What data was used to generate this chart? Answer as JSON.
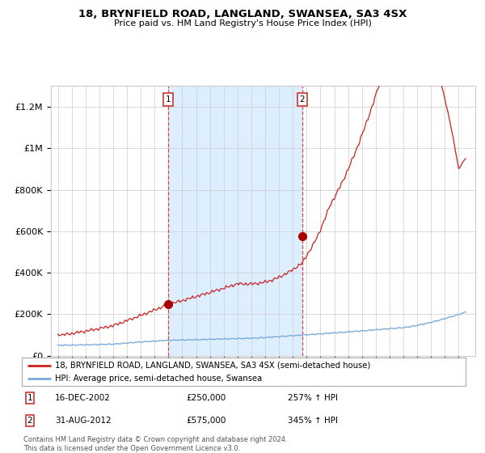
{
  "title1": "18, BRYNFIELD ROAD, LANGLAND, SWANSEA, SA3 4SX",
  "title2": "Price paid vs. HM Land Registry's House Price Index (HPI)",
  "legend_line1": "18, BRYNFIELD ROAD, LANGLAND, SWANSEA, SA3 4SX (semi-detached house)",
  "legend_line2": "HPI: Average price, semi-detached house, Swansea",
  "annotation1_date": "16-DEC-2002",
  "annotation1_price": "£250,000",
  "annotation1_hpi": "257% ↑ HPI",
  "annotation2_date": "31-AUG-2012",
  "annotation2_price": "£575,000",
  "annotation2_hpi": "345% ↑ HPI",
  "footnote": "Contains HM Land Registry data © Crown copyright and database right 2024.\nThis data is licensed under the Open Government Licence v3.0.",
  "hpi_color": "#7aaadd",
  "price_color": "#cc2222",
  "marker_color": "#aa0000",
  "vline_color": "#dd4444",
  "shade_color": "#ddeeff",
  "grid_color": "#cccccc",
  "bg_color": "#ffffff",
  "box_color": "#cc2222",
  "ylim_max": 1300000,
  "ytick_step": 200000,
  "xlim_min": 1994.5,
  "xlim_max": 2025.2,
  "purchase1_year": 2002.96,
  "purchase1_value": 250000,
  "purchase2_year": 2012.67,
  "purchase2_value": 575000
}
